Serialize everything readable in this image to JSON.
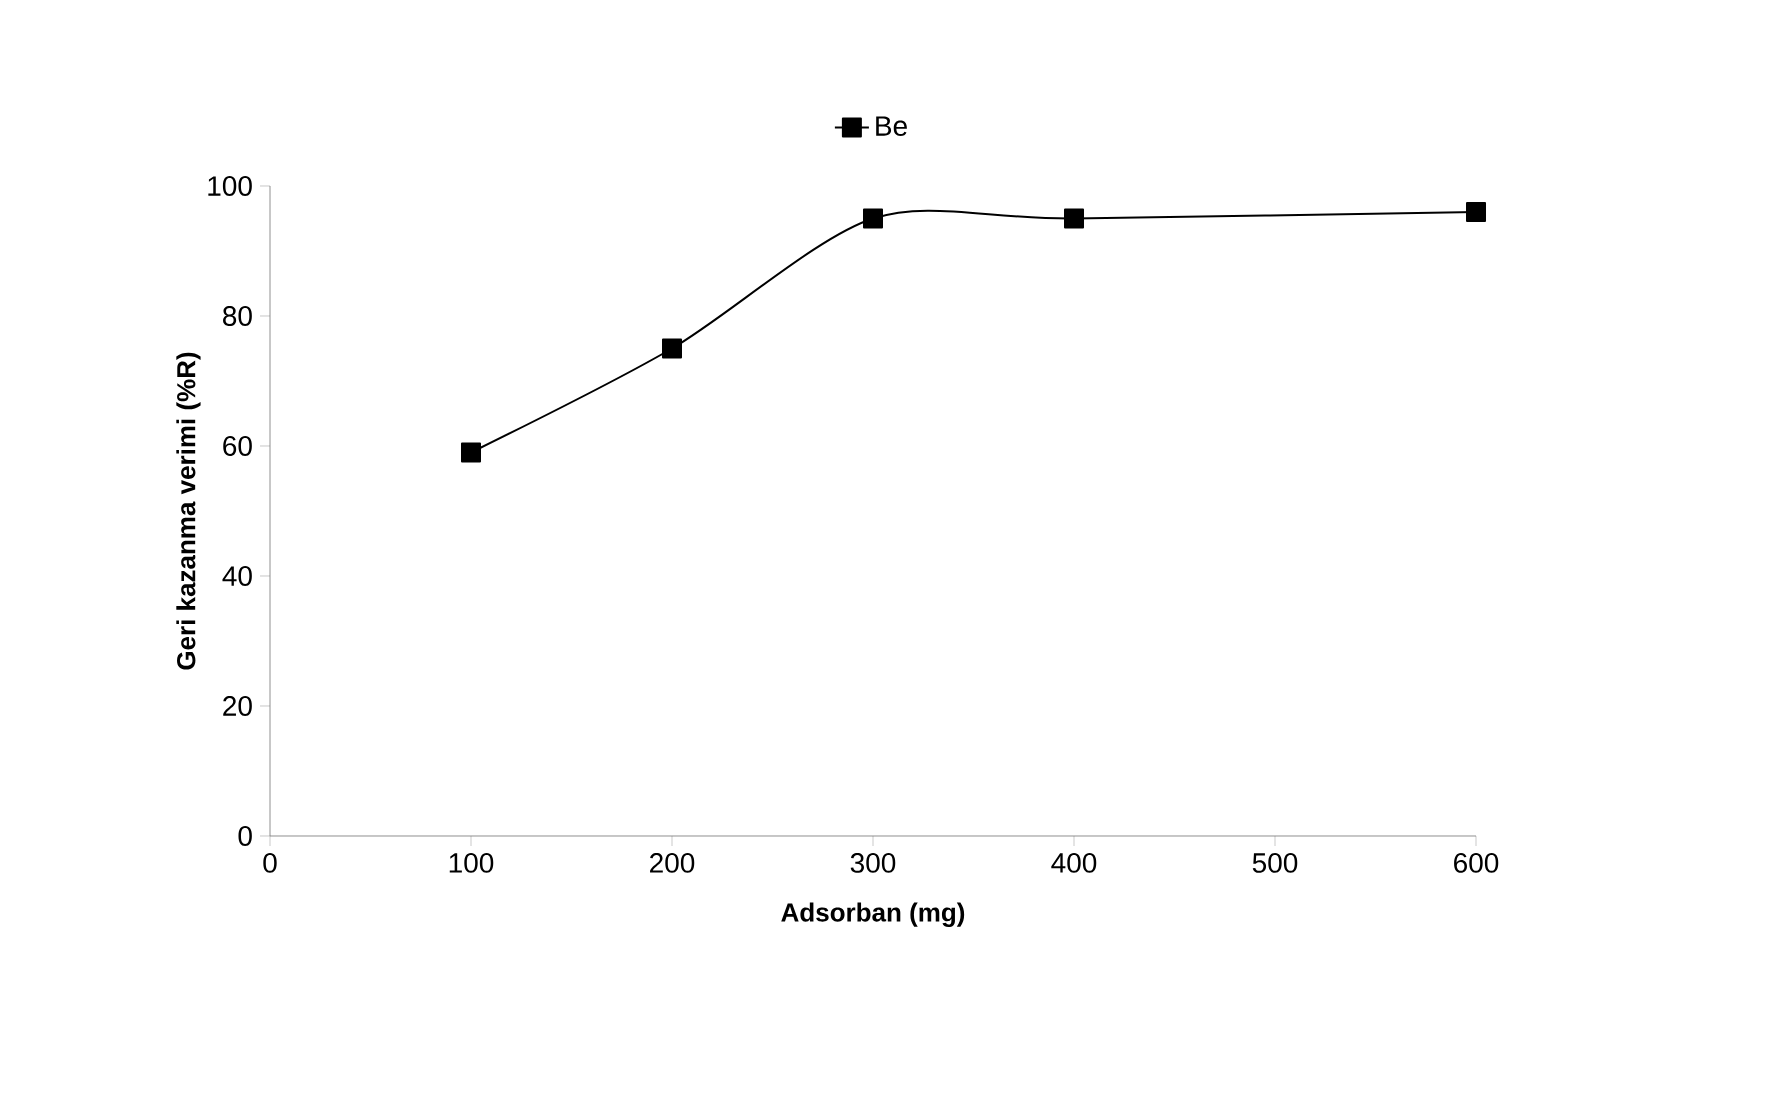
{
  "chart_data": {
    "type": "line",
    "xlabel": "Adsorban (mg)",
    "ylabel": "Geri kazanma verimi (%R)",
    "x": [
      100,
      200,
      300,
      400,
      600
    ],
    "series": [
      {
        "name": "Be",
        "color": "#000000",
        "values": [
          59,
          75,
          95,
          95,
          96
        ]
      }
    ],
    "xlim": [
      0,
      600
    ],
    "xticks": [
      0,
      100,
      200,
      300,
      400,
      500,
      600
    ],
    "ylim": [
      0,
      100
    ],
    "yticks": [
      0,
      20,
      40,
      60,
      80,
      100
    ],
    "grid": false,
    "legend": "top",
    "marker": "square",
    "line_style": "solid"
  }
}
